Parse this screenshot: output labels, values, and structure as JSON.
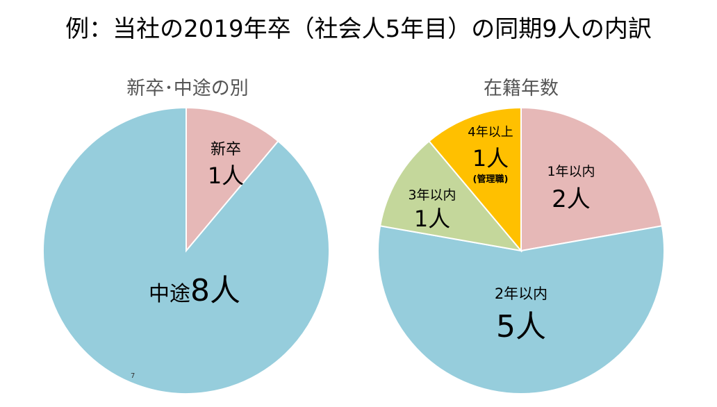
{
  "page": {
    "title": "例：当社の2019年卒（社会人5年目）の同期9人の内訳",
    "page_number": "7"
  },
  "chart_data": [
    {
      "type": "pie",
      "title": "新卒･中途の別",
      "slices": [
        {
          "label": "新卒",
          "value": 1,
          "value_text": "1人",
          "color": "#e6b8b7"
        },
        {
          "label": "中途",
          "value": 8,
          "value_text": "8人",
          "color": "#96cddc"
        }
      ]
    },
    {
      "type": "pie",
      "title": "在籍年数",
      "slices": [
        {
          "label": "1年以内",
          "value": 2,
          "value_text": "2人",
          "color": "#e6b8b7"
        },
        {
          "label": "2年以内",
          "value": 5,
          "value_text": "5人",
          "color": "#96cddc"
        },
        {
          "label": "3年以内",
          "value": 1,
          "value_text": "1人",
          "color": "#c4d79b"
        },
        {
          "label": "4年以上",
          "value": 1,
          "value_text": "1人",
          "note": "(管理職)",
          "color": "#ffc000"
        }
      ]
    }
  ]
}
